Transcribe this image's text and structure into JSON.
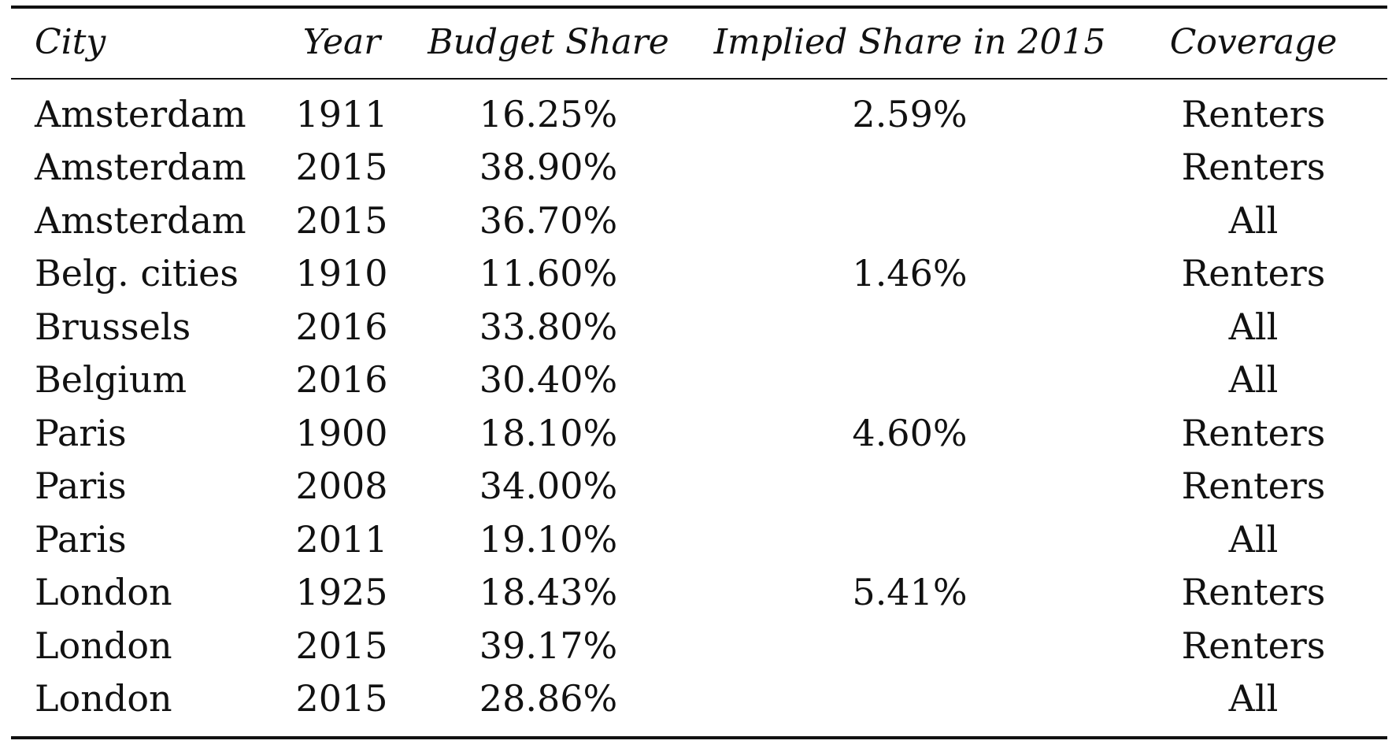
{
  "table": {
    "headers": {
      "city": "City",
      "year": "Year",
      "budget_share": "Budget Share",
      "implied_share": "Implied Share in 2015",
      "coverage": "Coverage"
    },
    "rows": [
      {
        "city": "Amsterdam",
        "year": "1911",
        "budget_share": "16.25%",
        "implied_share": "2.59%",
        "coverage": "Renters"
      },
      {
        "city": "Amsterdam",
        "year": "2015",
        "budget_share": "38.90%",
        "implied_share": "",
        "coverage": "Renters"
      },
      {
        "city": "Amsterdam",
        "year": "2015",
        "budget_share": "36.70%",
        "implied_share": "",
        "coverage": "All"
      },
      {
        "city": "Belg. cities",
        "year": "1910",
        "budget_share": "11.60%",
        "implied_share": "1.46%",
        "coverage": "Renters"
      },
      {
        "city": "Brussels",
        "year": "2016",
        "budget_share": "33.80%",
        "implied_share": "",
        "coverage": "All"
      },
      {
        "city": "Belgium",
        "year": "2016",
        "budget_share": "30.40%",
        "implied_share": "",
        "coverage": "All"
      },
      {
        "city": "Paris",
        "year": "1900",
        "budget_share": "18.10%",
        "implied_share": "4.60%",
        "coverage": "Renters"
      },
      {
        "city": "Paris",
        "year": "2008",
        "budget_share": "34.00%",
        "implied_share": "",
        "coverage": "Renters"
      },
      {
        "city": "Paris",
        "year": "2011",
        "budget_share": "19.10%",
        "implied_share": "",
        "coverage": "All"
      },
      {
        "city": "London",
        "year": "1925",
        "budget_share": "18.43%",
        "implied_share": "5.41%",
        "coverage": "Renters"
      },
      {
        "city": "London",
        "year": "2015",
        "budget_share": "39.17%",
        "implied_share": "",
        "coverage": "Renters"
      },
      {
        "city": "London",
        "year": "2015",
        "budget_share": "28.86%",
        "implied_share": "",
        "coverage": "All"
      }
    ]
  }
}
